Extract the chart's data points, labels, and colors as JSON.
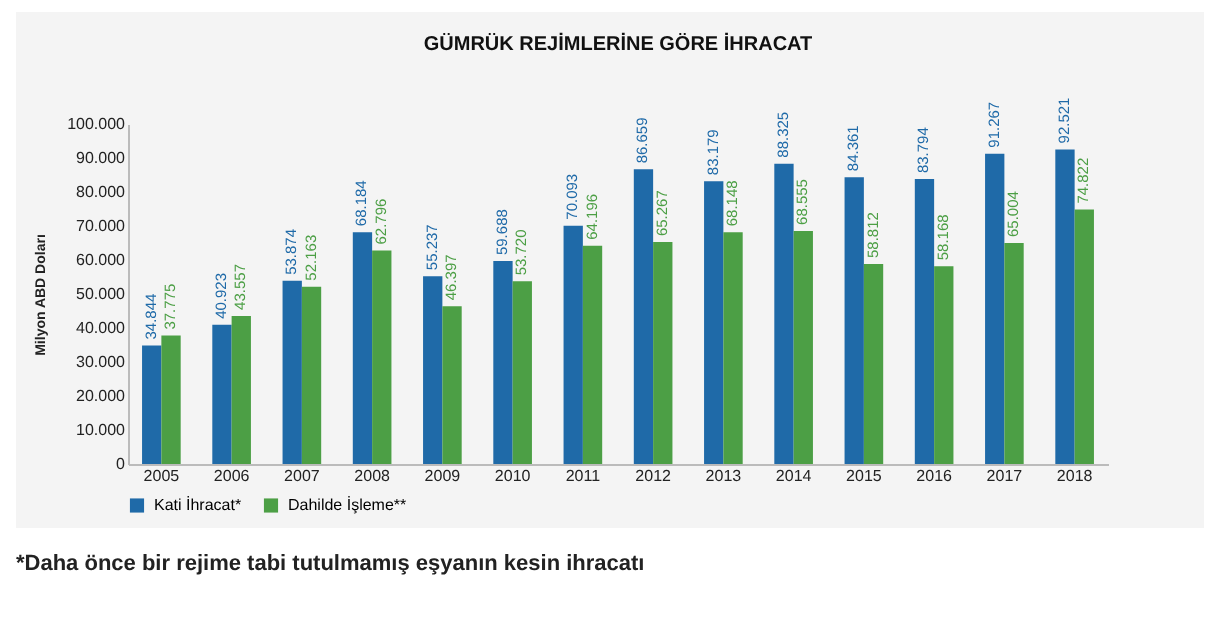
{
  "chart_data": {
    "type": "bar",
    "title": "GÜMRÜK REJİMLERİNE GÖRE İHRACAT",
    "ylabel": "Milyon ABD Doları",
    "categories": [
      "2005",
      "2006",
      "2007",
      "2008",
      "2009",
      "2010",
      "2011",
      "2012",
      "2013",
      "2014",
      "2015",
      "2016",
      "2017",
      "2018"
    ],
    "series": [
      {
        "name": "Kati İhracat*",
        "color": "#1f6aa8",
        "values": [
          34844,
          40923,
          53874,
          68184,
          55237,
          59688,
          70093,
          86659,
          83179,
          88325,
          84361,
          83794,
          91267,
          92521
        ],
        "value_labels": [
          "34.844",
          "40.923",
          "53.874",
          "68.184",
          "55.237",
          "59.688",
          "70.093",
          "86.659",
          "83.179",
          "88.325",
          "84.361",
          "83.794",
          "91.267",
          "92.521"
        ]
      },
      {
        "name": "Dahilde İşleme**",
        "color": "#4c9f45",
        "values": [
          37775,
          43557,
          52163,
          62796,
          46397,
          53720,
          64196,
          65267,
          68148,
          68555,
          58812,
          58168,
          65004,
          74822
        ],
        "value_labels": [
          "37.775",
          "43.557",
          "52.163",
          "62.796",
          "46.397",
          "53.720",
          "64.196",
          "65.267",
          "68.148",
          "68.555",
          "58.812",
          "58.168",
          "65.004",
          "74.822"
        ]
      }
    ],
    "ylim": [
      0,
      100000
    ],
    "yticks": [
      0,
      {
        "value": 10000,
        "label": "10.000"
      },
      {
        "value": 20000,
        "label": "20.000"
      },
      {
        "value": 30000,
        "label": "30.000"
      },
      {
        "value": 40000,
        "label": "40.000"
      },
      {
        "value": 50000,
        "label": "50.000"
      },
      {
        "value": 60000,
        "label": "60.000"
      },
      {
        "value": 70000,
        "label": "70.000"
      },
      {
        "value": 80000,
        "label": "80.000"
      },
      {
        "value": 90000,
        "label": "90.000"
      },
      {
        "value": 100000,
        "label": "100.000"
      }
    ],
    "grid": false,
    "legend": "bottom",
    "annotations": [
      "*Daha önce bir rejime tabi tutulmamış eşyanın kesin ihracatı"
    ]
  }
}
